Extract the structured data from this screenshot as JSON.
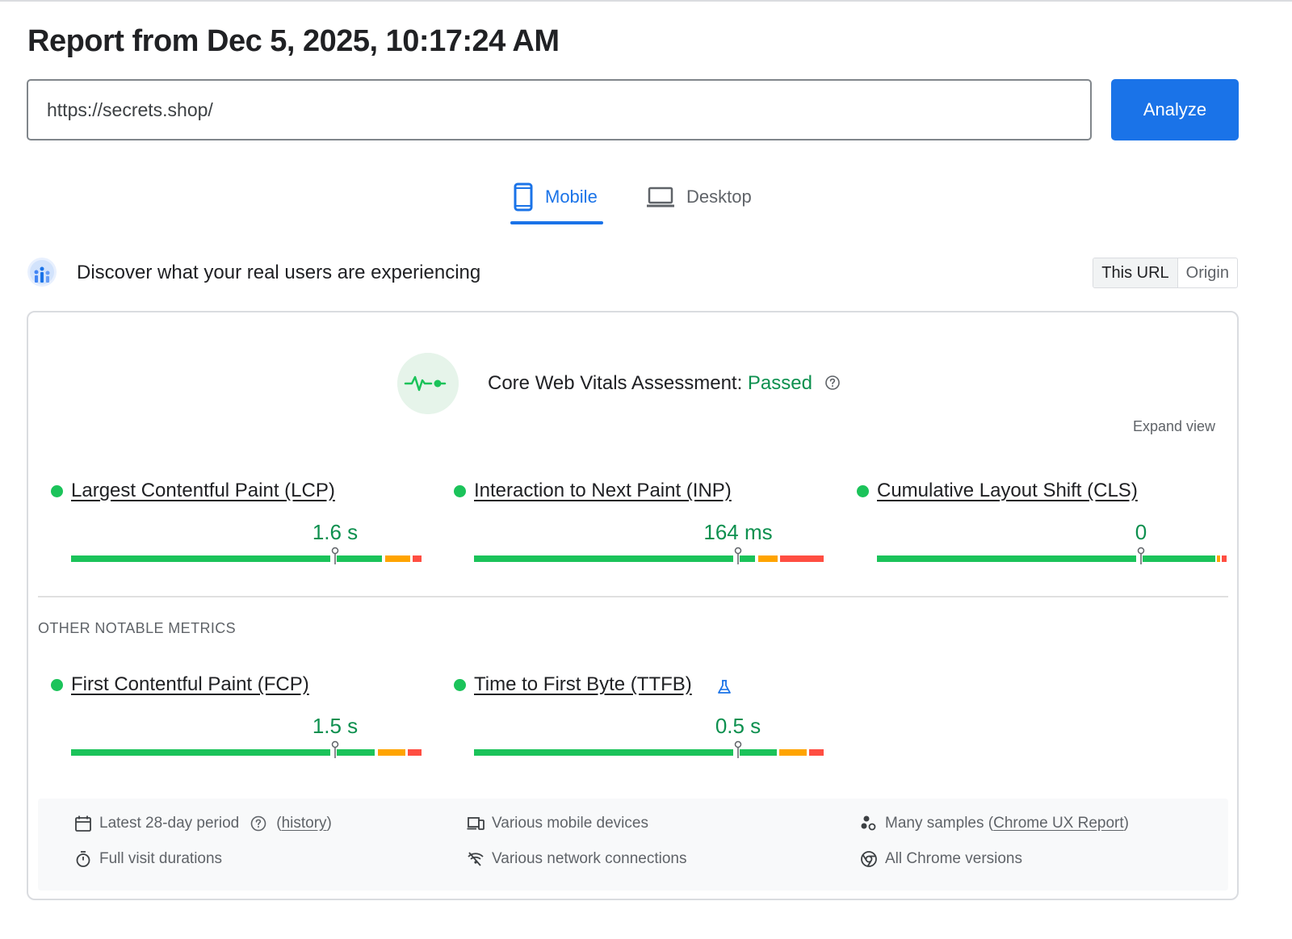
{
  "header": {
    "title": "Report from Dec 5, 2025, 10:17:24 AM"
  },
  "search": {
    "url_value": "https://secrets.shop/",
    "analyze_label": "Analyze"
  },
  "tabs": {
    "mobile": "Mobile",
    "desktop": "Desktop",
    "active": "Mobile"
  },
  "crux": {
    "title": "Discover what your real users are experiencing",
    "toggle": {
      "this_url": "This URL",
      "origin": "Origin",
      "selected": "This URL"
    }
  },
  "assessment": {
    "label": "Core Web Vitals Assessment:",
    "status": "Passed",
    "expand": "Expand view"
  },
  "metrics": {
    "lcp": {
      "name": "Largest Contentful Paint (LCP)",
      "value": "1.6 s",
      "status": "good"
    },
    "inp": {
      "name": "Interaction to Next Paint (INP)",
      "value": "164 ms",
      "status": "good"
    },
    "cls": {
      "name": "Cumulative Layout Shift (CLS)",
      "value": "0",
      "status": "good"
    }
  },
  "other": {
    "title": "OTHER NOTABLE METRICS",
    "fcp": {
      "name": "First Contentful Paint (FCP)",
      "value": "1.5 s",
      "status": "good"
    },
    "ttfb": {
      "name": "Time to First Byte (TTFB)",
      "value": "0.5 s",
      "status": "good",
      "experimental": true
    }
  },
  "footer": {
    "period": "Latest 28-day period",
    "history": "history",
    "devices": "Various mobile devices",
    "samples_prefix": "Many samples (",
    "samples_link": "Chrome UX Report",
    "samples_suffix": ")",
    "durations": "Full visit durations",
    "network": "Various network connections",
    "versions": "All Chrome versions"
  },
  "colors": {
    "accent": "#1a73e8",
    "good": "#0d904f",
    "good_bar": "#1bc35a",
    "needs_improvement": "#ffa400",
    "poor": "#ff4e42"
  }
}
